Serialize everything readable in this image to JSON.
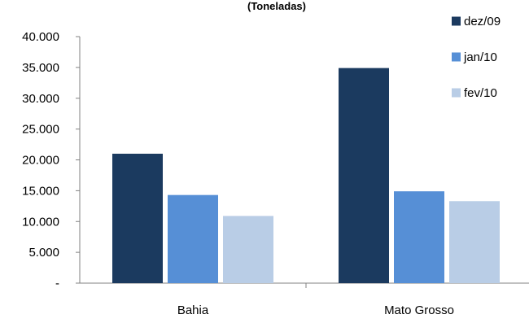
{
  "chart_data": {
    "type": "bar",
    "title": "(Toneladas)",
    "xlabel": "",
    "ylabel": "",
    "categories": [
      "Bahia",
      "Mato Grosso"
    ],
    "series": [
      {
        "name": "dez/09",
        "color": "#1b3a5f",
        "values": [
          21000,
          34900
        ]
      },
      {
        "name": "jan/10",
        "color": "#568fd6",
        "values": [
          14300,
          14900
        ]
      },
      {
        "name": "fev/10",
        "color": "#b9cde6",
        "values": [
          10900,
          13300
        ]
      }
    ],
    "ylim": [
      0,
      40000
    ],
    "yticks": [
      {
        "value": 0,
        "label": "-"
      },
      {
        "value": 5000,
        "label": "5.000"
      },
      {
        "value": 10000,
        "label": "10.000"
      },
      {
        "value": 15000,
        "label": "15.000"
      },
      {
        "value": 20000,
        "label": "20.000"
      },
      {
        "value": 25000,
        "label": "25.000"
      },
      {
        "value": 30000,
        "label": "30.000"
      },
      {
        "value": 35000,
        "label": "35.000"
      },
      {
        "value": 40000,
        "label": "40.000"
      }
    ],
    "grid": false,
    "legend_position": "top-right"
  }
}
